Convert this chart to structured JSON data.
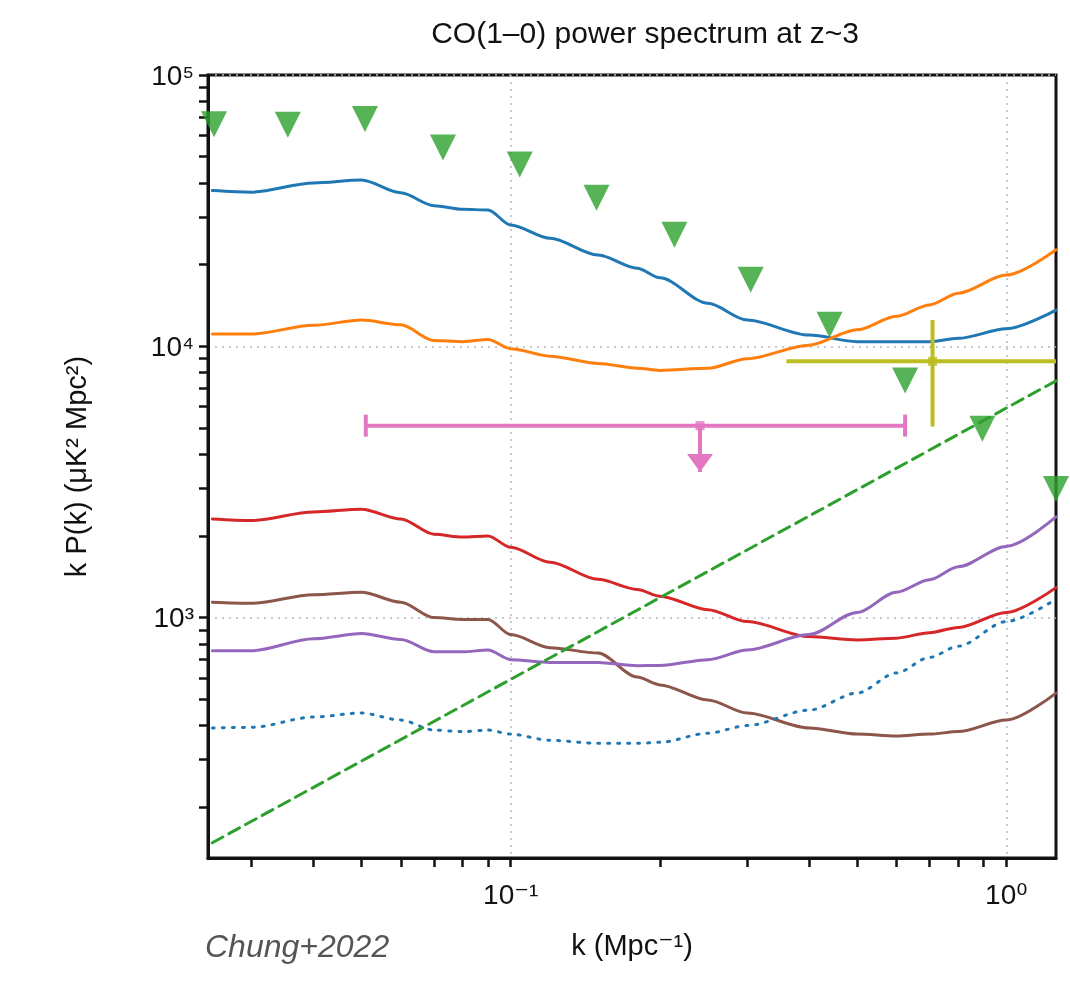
{
  "chart_data": {
    "type": "line",
    "title": "CO(1–0) power spectrum at z~3",
    "xlabel": "k (Mpc⁻¹)",
    "ylabel": "k P(k) (μK² Mpc²)",
    "annotations": [
      "Chung+2022"
    ],
    "log": "xy",
    "grid": true,
    "marker": "none",
    "line_style": "solid",
    "xlim": [
      0.0245,
      1.26
    ],
    "ylim": [
      130,
      100000
    ],
    "xticks": [
      {
        "value": 0.03,
        "label": null
      },
      {
        "value": 0.04,
        "label": null
      },
      {
        "value": 0.05,
        "label": null
      },
      {
        "value": 0.06,
        "label": null
      },
      {
        "value": 0.07,
        "label": null
      },
      {
        "value": 0.08,
        "label": null
      },
      {
        "value": 0.09,
        "label": null
      },
      {
        "value": 0.1,
        "label": "10⁻¹"
      },
      {
        "value": 0.2,
        "label": null
      },
      {
        "value": 0.3,
        "label": null
      },
      {
        "value": 0.4,
        "label": null
      },
      {
        "value": 0.5,
        "label": null
      },
      {
        "value": 0.6,
        "label": null
      },
      {
        "value": 0.7,
        "label": null
      },
      {
        "value": 0.8,
        "label": null
      },
      {
        "value": 0.9,
        "label": null
      },
      {
        "value": 1,
        "label": "10⁰"
      }
    ],
    "yticks": [
      {
        "value": 200,
        "label": null
      },
      {
        "value": 300,
        "label": null
      },
      {
        "value": 400,
        "label": null
      },
      {
        "value": 500,
        "label": null
      },
      {
        "value": 600,
        "label": null
      },
      {
        "value": 700,
        "label": null
      },
      {
        "value": 800,
        "label": null
      },
      {
        "value": 900,
        "label": null
      },
      {
        "value": 1000,
        "label": "10³"
      },
      {
        "value": 2000,
        "label": null
      },
      {
        "value": 3000,
        "label": null
      },
      {
        "value": 4000,
        "label": null
      },
      {
        "value": 5000,
        "label": null
      },
      {
        "value": 6000,
        "label": null
      },
      {
        "value": 7000,
        "label": null
      },
      {
        "value": 8000,
        "label": null
      },
      {
        "value": 9000,
        "label": null
      },
      {
        "value": 10000,
        "label": "10⁴"
      },
      {
        "value": 20000,
        "label": null
      },
      {
        "value": 30000,
        "label": null
      },
      {
        "value": 40000,
        "label": null
      },
      {
        "value": 50000,
        "label": null
      },
      {
        "value": 60000,
        "label": null
      },
      {
        "value": 70000,
        "label": null
      },
      {
        "value": 80000,
        "label": null
      },
      {
        "value": 90000,
        "label": null
      },
      {
        "value": 100000,
        "label": "10⁵"
      }
    ],
    "x": [
      0.025,
      0.03,
      0.04,
      0.05,
      0.06,
      0.07,
      0.08,
      0.09,
      0.1,
      0.12,
      0.15,
      0.18,
      0.2,
      0.25,
      0.3,
      0.4,
      0.5,
      0.6,
      0.7,
      0.8,
      1.0,
      1.26
    ],
    "series": [
      {
        "color": "#1f77b4",
        "values": [
          37500,
          37000,
          40000,
          41000,
          36800,
          33000,
          32000,
          31800,
          28000,
          25000,
          21700,
          19400,
          17900,
          14400,
          12500,
          11000,
          10400,
          10400,
          10400,
          10700,
          11600,
          13600
        ]
      },
      {
        "color": "#ff7f0e",
        "values": [
          11100,
          11100,
          11960,
          12500,
          12000,
          10500,
          10400,
          10600,
          9800,
          9200,
          8650,
          8300,
          8150,
          8300,
          9000,
          10100,
          11500,
          12900,
          14200,
          15700,
          18300,
          22700
        ]
      },
      {
        "color": "#d62728",
        "values": [
          2310,
          2280,
          2450,
          2510,
          2310,
          2030,
          1980,
          2000,
          1815,
          1600,
          1384,
          1270,
          1200,
          1070,
          967,
          851,
          827,
          840,
          880,
          920,
          1045,
          1290
        ]
      },
      {
        "color": "#8c564b",
        "values": [
          1140,
          1130,
          1215,
          1240,
          1140,
          1000,
          985,
          985,
          866,
          775,
          740,
          604,
          565,
          497,
          445,
          392,
          372,
          366,
          372,
          380,
          419,
          527
        ]
      },
      {
        "color": "#9467bd",
        "values": [
          755,
          755,
          836,
          873,
          830,
          748,
          748,
          760,
          700,
          683,
          683,
          665,
          666,
          700,
          760,
          866,
          1045,
          1240,
          1380,
          1540,
          1830,
          2350
        ]
      },
      {
        "color": "#1f77b4",
        "line_style": "dotted",
        "values": [
          392,
          394,
          430,
          445,
          419,
          385,
          380,
          385,
          372,
          353,
          344,
          344,
          347,
          375,
          400,
          456,
          527,
          625,
          713,
          785,
          967,
          1170
        ]
      },
      {
        "color": "#2ca02c",
        "line_style": "dashed",
        "x": [
          0.025,
          1.26
        ],
        "values": [
          148,
          7460
        ]
      },
      {
        "type": "scatter",
        "marker": "triangle",
        "color": "#2ca02c",
        "x": [
          0.0252,
          0.0355,
          0.0508,
          0.073,
          0.1043,
          0.149,
          0.214,
          0.305,
          0.44,
          0.625,
          0.895,
          1.26
        ],
        "values": [
          65900,
          65500,
          68800,
          54100,
          46800,
          35300,
          25800,
          17600,
          12000,
          7480,
          4970,
          2980
        ]
      },
      {
        "type": "scatter",
        "marker": "square",
        "color": "#bcbd22",
        "x": [
          0.71
        ],
        "values": [
          8800
        ],
        "errors": [
          [
            5060,
            12500
          ]
        ],
        "xerrors": [
          [
            0.36,
            1.26
          ]
        ]
      },
      {
        "type": "scatter",
        "marker": "square",
        "color": "#e377c2",
        "x": [
          0.241
        ],
        "values": [
          5100
        ],
        "errors": [
          [
            3440,
            5100
          ]
        ],
        "xerrors": [
          [
            0.051,
            0.625
          ]
        ]
      }
    ]
  }
}
